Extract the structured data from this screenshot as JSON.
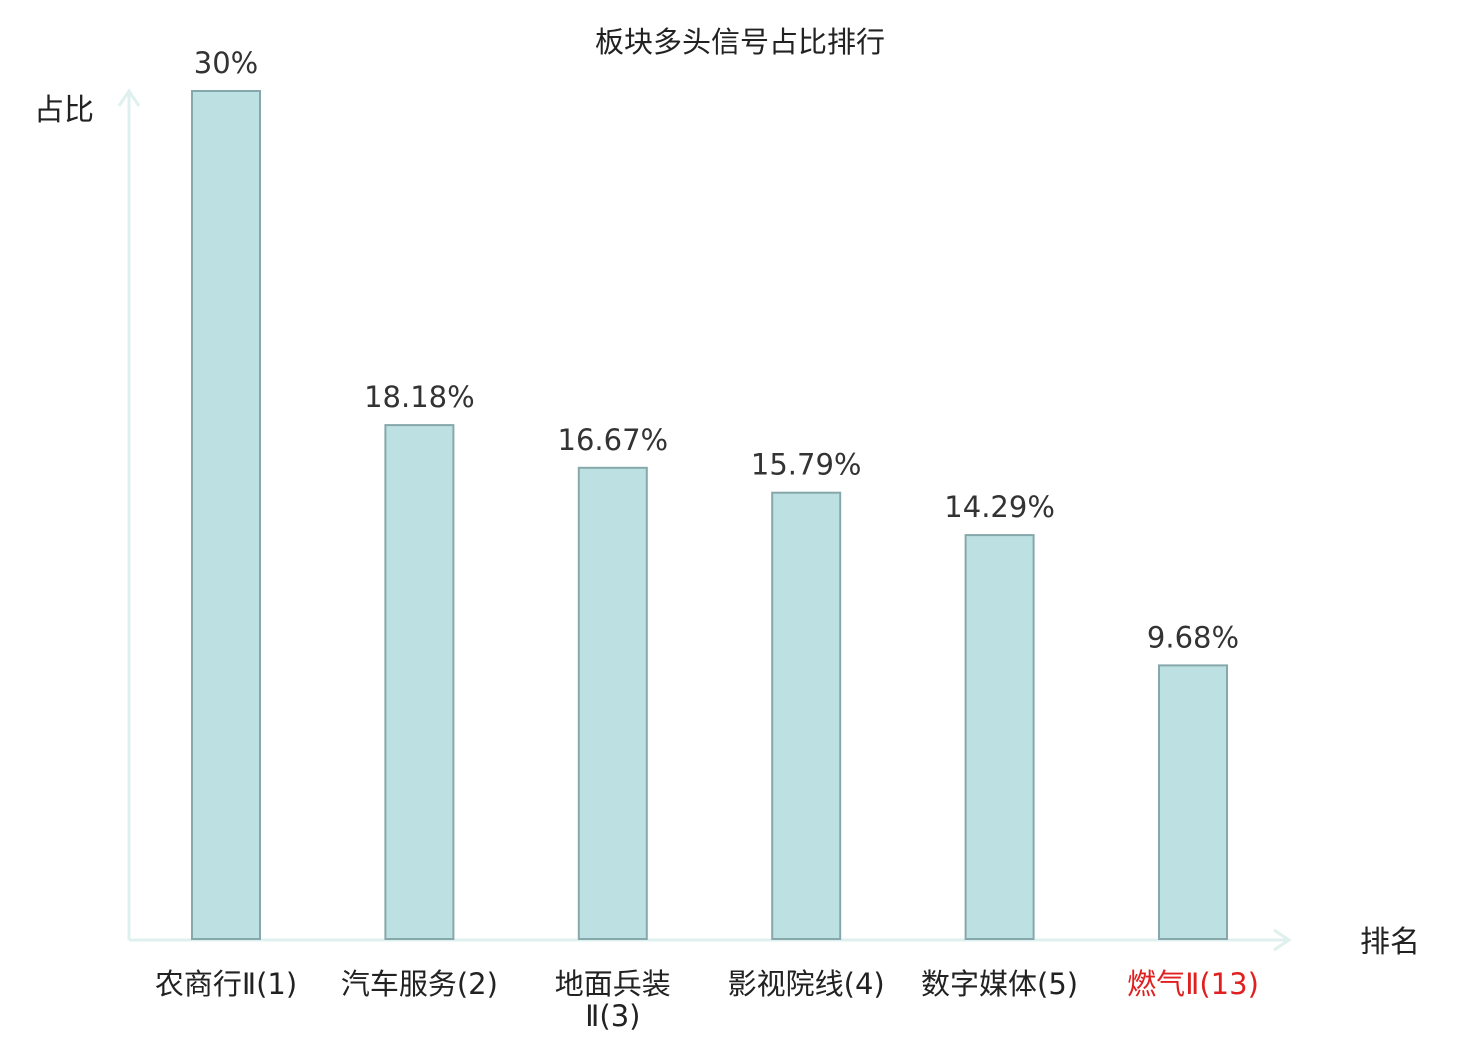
{
  "chart_data": {
    "type": "bar",
    "title": "板块多头信号占比排行",
    "ylabel": "占比",
    "xlabel": "排名",
    "categories": [
      "农商行Ⅱ(1)",
      "汽车服务(2)",
      "地面兵装Ⅱ(3)",
      "影视院线(4)",
      "数字媒体(5)",
      "燃气Ⅱ(13)"
    ],
    "category_lines": [
      [
        "农商行Ⅱ(1)"
      ],
      [
        "汽车服务(2)"
      ],
      [
        "地面兵装",
        "Ⅱ(3)"
      ],
      [
        "影视院线(4)"
      ],
      [
        "数字媒体(5)"
      ],
      [
        "燃气Ⅱ(13)"
      ]
    ],
    "values": [
      30,
      18.18,
      16.67,
      15.79,
      14.29,
      9.68
    ],
    "value_labels": [
      "30%",
      "18.18%",
      "16.67%",
      "15.79%",
      "14.29%",
      "9.68%"
    ],
    "highlight_index": 5,
    "ylim": [
      0,
      30
    ],
    "grid": false,
    "legend": "none",
    "colors": {
      "bar_fill": "#bde0e2",
      "bar_stroke": "#86a8aa",
      "axis": "#dff1ee",
      "text": "#222222",
      "value_text": "#333333",
      "highlight_text": "#e02020"
    }
  }
}
